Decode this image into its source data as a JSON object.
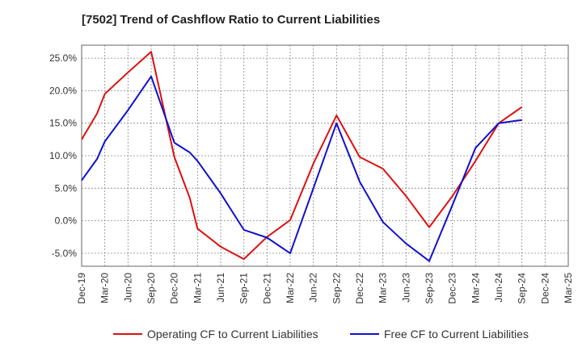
{
  "chart_data": {
    "type": "line",
    "title": "[7502]  Trend of Cashflow Ratio to Current Liabilities",
    "xlabel": "",
    "ylabel": "",
    "ylim": [
      -7,
      27
    ],
    "y_ticks": [
      -5,
      0,
      5,
      10,
      15,
      20,
      25
    ],
    "y_tick_labels": [
      "-5.0%",
      "0.0%",
      "5.0%",
      "10.0%",
      "15.0%",
      "20.0%",
      "25.0%"
    ],
    "x_tick_labels": [
      "Dec-19",
      "Mar-20",
      "Jun-20",
      "Sep-20",
      "Dec-20",
      "Mar-21",
      "Jun-21",
      "Sep-21",
      "Dec-21",
      "Mar-22",
      "Jun-22",
      "Sep-22",
      "Dec-22",
      "Mar-23",
      "Jun-23",
      "Sep-23",
      "Dec-23",
      "Mar-24",
      "Jun-24",
      "Sep-24",
      "Dec-24",
      "Mar-25"
    ],
    "grid": true,
    "legend_position": "bottom",
    "series": [
      {
        "name": "Operating CF to Current Liabilities",
        "color": "#dd1111",
        "points": [
          [
            "Dec-19",
            12.5
          ],
          [
            "Feb-20",
            16.5
          ],
          [
            "Mar-20",
            19.5
          ],
          [
            "Jun-20",
            22.8
          ],
          [
            "Sep-20",
            26.0
          ],
          [
            "Dec-20",
            9.8
          ],
          [
            "Feb-21",
            3.5
          ],
          [
            "Mar-21",
            -1.2
          ],
          [
            "Jun-21",
            -4.0
          ],
          [
            "Sep-21",
            -5.9
          ],
          [
            "Dec-21",
            -2.5
          ],
          [
            "Mar-22",
            0.1
          ],
          [
            "Jun-22",
            8.8
          ],
          [
            "Sep-22",
            16.2
          ],
          [
            "Dec-22",
            9.8
          ],
          [
            "Mar-23",
            8.0
          ],
          [
            "Jun-23",
            3.8
          ],
          [
            "Sep-23",
            -1.0
          ],
          [
            "Dec-23",
            3.8
          ],
          [
            "Mar-24",
            9.2
          ],
          [
            "Jun-24",
            15.0
          ],
          [
            "Sep-24",
            17.5
          ]
        ]
      },
      {
        "name": "Free CF to Current Liabilities",
        "color": "#1111cc",
        "points": [
          [
            "Dec-19",
            6.2
          ],
          [
            "Feb-20",
            9.5
          ],
          [
            "Mar-20",
            12.2
          ],
          [
            "Jun-20",
            17.0
          ],
          [
            "Sep-20",
            22.2
          ],
          [
            "Dec-20",
            12.0
          ],
          [
            "Feb-21",
            10.5
          ],
          [
            "Mar-21",
            9.2
          ],
          [
            "Jun-21",
            4.2
          ],
          [
            "Sep-21",
            -1.4
          ],
          [
            "Dec-21",
            -2.6
          ],
          [
            "Mar-22",
            -5.0
          ],
          [
            "Jun-22",
            5.0
          ],
          [
            "Sep-22",
            15.0
          ],
          [
            "Dec-22",
            6.0
          ],
          [
            "Mar-23",
            -0.2
          ],
          [
            "Jun-23",
            -3.5
          ],
          [
            "Sep-23",
            -6.2
          ],
          [
            "Dec-23",
            2.4
          ],
          [
            "Mar-24",
            11.2
          ],
          [
            "Jun-24",
            15.0
          ],
          [
            "Sep-24",
            15.5
          ]
        ]
      }
    ]
  }
}
